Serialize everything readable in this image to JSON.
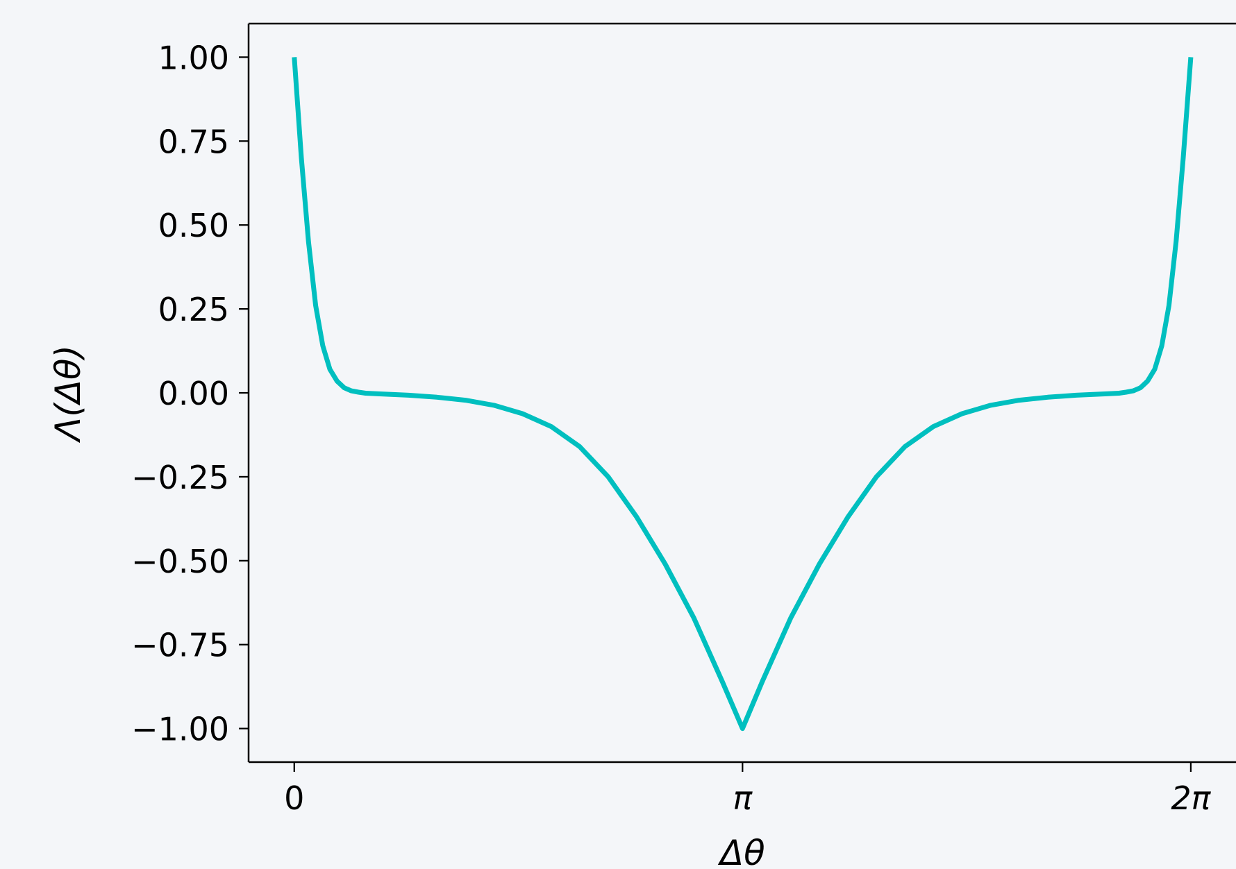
{
  "chart_data": {
    "type": "line",
    "xlabel": "Δθ",
    "ylabel": "Λ(Δθ)",
    "xlim": [
      -0.32,
      6.6
    ],
    "ylim": [
      -1.1,
      1.1
    ],
    "grid": true,
    "x_ticks": [
      {
        "value": 0,
        "label": "0"
      },
      {
        "value": 3.14159,
        "label": "π"
      },
      {
        "value": 6.28319,
        "label": "2π"
      }
    ],
    "y_ticks": [
      {
        "value": 1.0,
        "label": "1.00"
      },
      {
        "value": 0.75,
        "label": "0.75"
      },
      {
        "value": 0.5,
        "label": "0.50"
      },
      {
        "value": 0.25,
        "label": "0.25"
      },
      {
        "value": 0.0,
        "label": "0.00"
      },
      {
        "value": -0.25,
        "label": "−0.25"
      },
      {
        "value": -0.5,
        "label": "−0.50"
      },
      {
        "value": -0.75,
        "label": "−0.75"
      },
      {
        "value": -1.0,
        "label": "−1.00"
      }
    ],
    "series": [
      {
        "color": "#00bfbf",
        "x": [
          0,
          0.05,
          0.1,
          0.15,
          0.2,
          0.25,
          0.3,
          0.35,
          0.4,
          0.45,
          0.5,
          0.6,
          0.8,
          1.0,
          1.2,
          1.4,
          1.6,
          1.8,
          2.0,
          2.2,
          2.4,
          2.6,
          2.8,
          3.0,
          3.14159,
          3.28,
          3.48,
          3.68,
          3.88,
          4.08,
          4.28,
          4.48,
          4.68,
          4.88,
          5.08,
          5.28,
          5.48,
          5.68,
          5.78,
          5.83,
          5.88,
          5.93,
          5.98,
          6.03,
          6.08,
          6.13,
          6.18,
          6.23,
          6.28319
        ],
        "y": [
          1.0,
          0.7,
          0.45,
          0.26,
          0.14,
          0.07,
          0.035,
          0.015,
          0.006,
          0.002,
          -0.001,
          -0.003,
          -0.007,
          -0.013,
          -0.022,
          -0.037,
          -0.062,
          -0.1,
          -0.16,
          -0.25,
          -0.37,
          -0.51,
          -0.67,
          -0.86,
          -1.0,
          -0.86,
          -0.67,
          -0.51,
          -0.37,
          -0.25,
          -0.16,
          -0.1,
          -0.062,
          -0.037,
          -0.022,
          -0.013,
          -0.007,
          -0.003,
          -0.001,
          0.002,
          0.006,
          0.015,
          0.035,
          0.07,
          0.14,
          0.26,
          0.45,
          0.7,
          1.0
        ]
      }
    ]
  }
}
